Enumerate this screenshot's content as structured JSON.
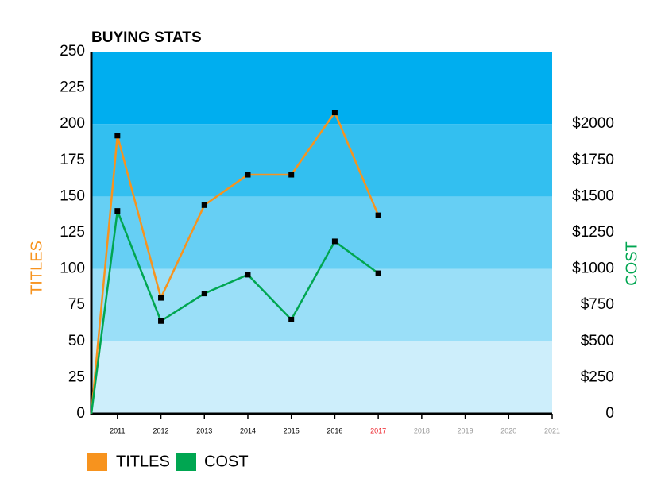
{
  "chart_data": {
    "type": "line",
    "title": "BUYING STATS",
    "x": [
      2010.4,
      2011,
      2012,
      2013,
      2014,
      2015,
      2016,
      2017
    ],
    "series": [
      {
        "name": "TITLES",
        "color": "#f7931e",
        "values": [
          0,
          192,
          80,
          144,
          165,
          165,
          208,
          137
        ]
      },
      {
        "name": "COST",
        "color": "#00a651",
        "axis": "y2",
        "values": [
          0,
          1400,
          640,
          830,
          960,
          650,
          1190,
          970
        ]
      }
    ],
    "y_label": "TITLES",
    "y2_label": "COST",
    "xlim": [
      2010.4,
      2021
    ],
    "xticks": [
      2011,
      2012,
      2013,
      2014,
      2015,
      2016,
      2017,
      2018,
      2019,
      2020,
      2021
    ],
    "xtick_colors": [
      "#000",
      "#000",
      "#000",
      "#000",
      "#000",
      "#000",
      "#ed1c24",
      "#999",
      "#999",
      "#999",
      "#999"
    ],
    "ylim": [
      0,
      250
    ],
    "yticks": [
      0,
      25,
      50,
      75,
      100,
      125,
      150,
      175,
      200,
      225,
      250
    ],
    "y2lim": [
      0,
      2500
    ],
    "y2ticks": [
      0,
      {
        "value": 250,
        "label": "$250"
      },
      {
        "value": 500,
        "label": "$500"
      },
      {
        "value": 750,
        "label": "$750"
      },
      {
        "value": 1000,
        "label": "$1000"
      },
      {
        "value": 1250,
        "label": "$1250"
      },
      {
        "value": 1500,
        "label": "$1500"
      },
      {
        "value": 1750,
        "label": "$1750"
      },
      {
        "value": 2000,
        "label": "$2000"
      }
    ],
    "band_colors": [
      "#cdeefb",
      "#9adff8",
      "#66cff4",
      "#33bff0",
      "#00aeef"
    ],
    "marker_color": "#000000"
  }
}
